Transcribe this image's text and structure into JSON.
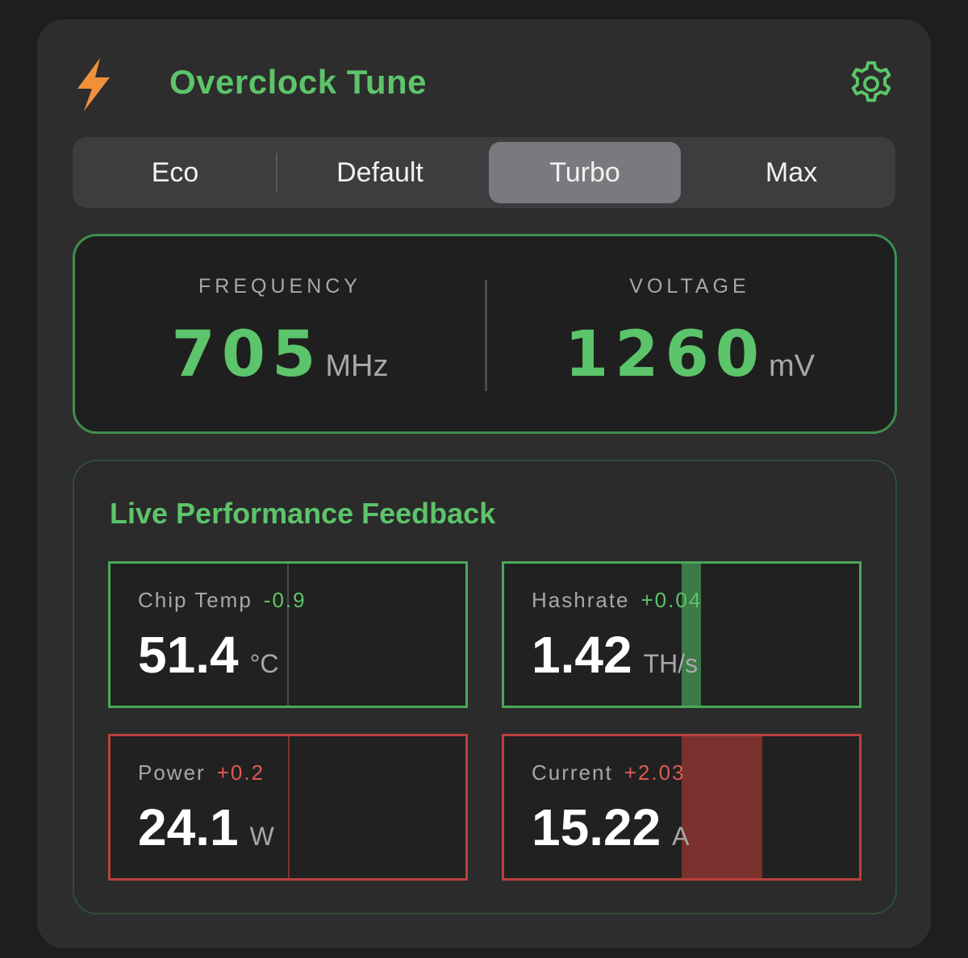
{
  "header": {
    "title": "Overclock Tune",
    "icons": {
      "left": "lightning-bolt-icon",
      "right": "gear-icon"
    },
    "colors": {
      "bolt": "#f0913a",
      "accent": "#5cc46a"
    }
  },
  "modes": {
    "options": [
      "Eco",
      "Default",
      "Turbo",
      "Max"
    ],
    "selected": "Turbo"
  },
  "settings": {
    "frequency": {
      "label": "FREQUENCY",
      "value": "705",
      "unit": "MHz"
    },
    "voltage": {
      "label": "VOLTAGE",
      "value": "1260",
      "unit": "mV"
    }
  },
  "live": {
    "title": "Live Performance Feedback",
    "metrics": [
      {
        "label": "Chip Temp",
        "delta": "-0.9",
        "value": "51.4",
        "unit": "°C",
        "trend": "good"
      },
      {
        "label": "Hashrate",
        "delta": "+0.04",
        "value": "1.42",
        "unit": "TH/s",
        "trend": "good"
      },
      {
        "label": "Power",
        "delta": "+0.2",
        "value": "24.1",
        "unit": "W",
        "trend": "bad"
      },
      {
        "label": "Current",
        "delta": "+2.03",
        "value": "15.22",
        "unit": "A",
        "trend": "bad"
      }
    ]
  },
  "colors": {
    "good": "#4aa85b",
    "bad": "#b8413c"
  }
}
